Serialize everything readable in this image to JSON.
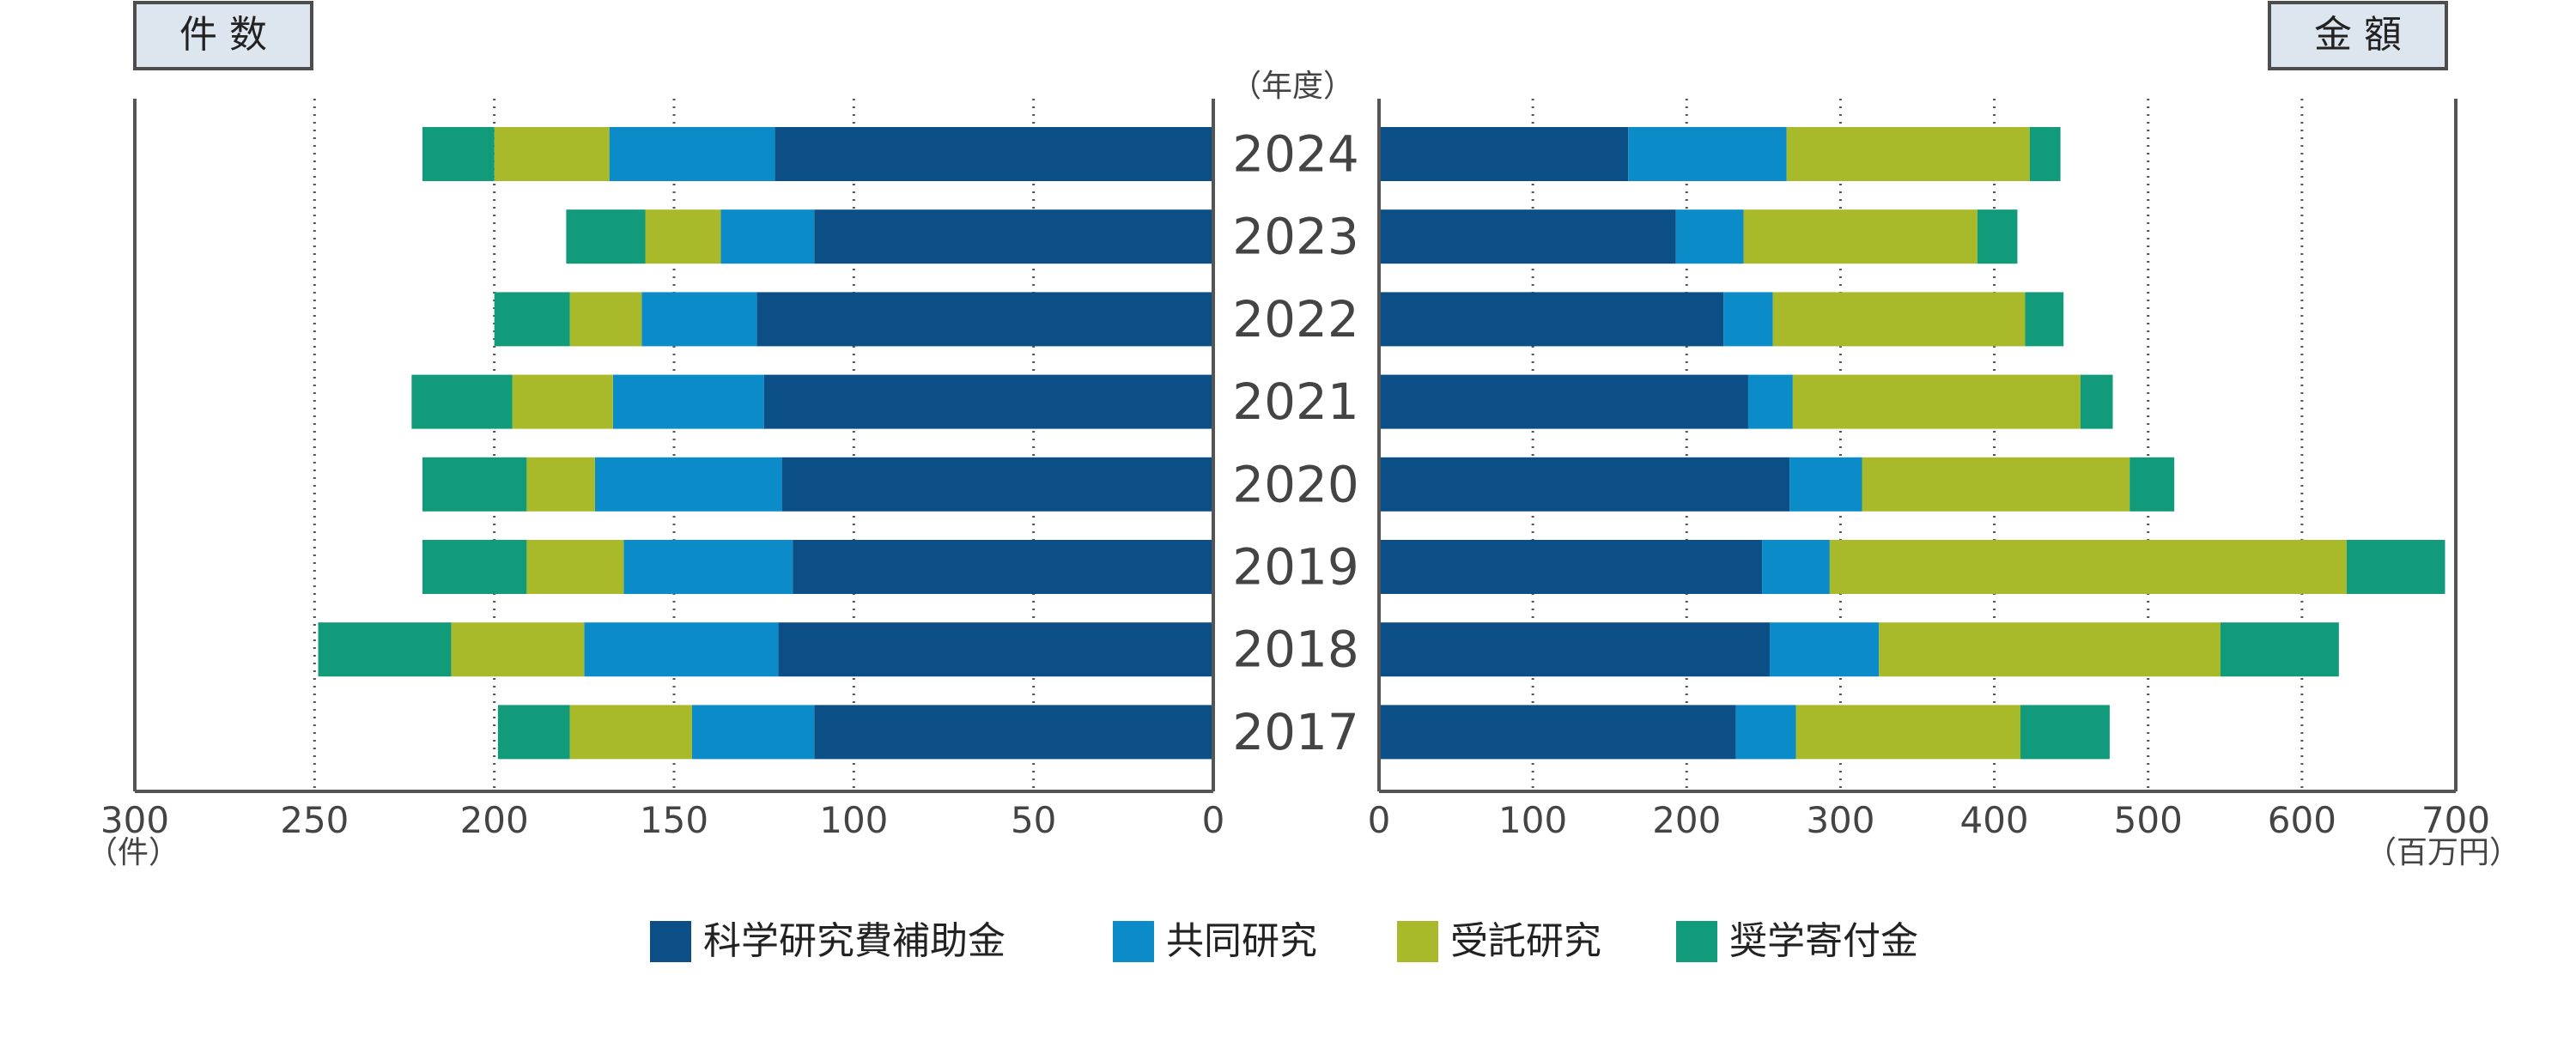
{
  "chart_data": {
    "type": "bar",
    "orientation": "horizontal",
    "stacked": true,
    "layout": "mirrored-butterfly",
    "center_label": "（年度）",
    "categories": [
      "2024",
      "2023",
      "2022",
      "2021",
      "2020",
      "2019",
      "2018",
      "2017"
    ],
    "legend": {
      "position": "bottom",
      "items": [
        "科学研究費補助金",
        "共同研究",
        "受託研究",
        "奨学寄付金"
      ]
    },
    "left_panel": {
      "title": "件 数",
      "axis_unit": "（件）",
      "xlim": [
        0,
        300
      ],
      "reversed": true,
      "ticks": [
        "300",
        "250",
        "200",
        "150",
        "100",
        "50",
        "0"
      ],
      "tick_values": [
        300,
        250,
        200,
        150,
        100,
        50,
        0
      ],
      "series": [
        {
          "name": "科学研究費補助金",
          "color": "#0b4f86",
          "values": [
            122,
            111,
            127,
            125,
            120,
            117,
            121,
            111
          ]
        },
        {
          "name": "共同研究",
          "color": "#0b8cc8",
          "values": [
            46,
            26,
            32,
            42,
            52,
            47,
            54,
            34
          ]
        },
        {
          "name": "受託研究",
          "color": "#a8b92a",
          "values": [
            32,
            21,
            20,
            28,
            19,
            27,
            37,
            34
          ]
        },
        {
          "name": "奨学寄付金",
          "color": "#119b7b",
          "values": [
            20,
            22,
            21,
            28,
            29,
            29,
            37,
            20
          ]
        }
      ]
    },
    "right_panel": {
      "title": "金 額",
      "axis_unit": "（百万円）",
      "xlim": [
        0,
        700
      ],
      "ticks": [
        "0",
        "100",
        "200",
        "300",
        "400",
        "500",
        "600",
        "700"
      ],
      "tick_values": [
        0,
        100,
        200,
        300,
        400,
        500,
        600,
        700
      ],
      "series": [
        {
          "name": "科学研究費補助金",
          "color": "#0b4f86",
          "values": [
            162,
            193,
            224,
            240,
            267,
            249,
            254,
            232
          ]
        },
        {
          "name": "共同研究",
          "color": "#0b8cc8",
          "values": [
            103,
            44,
            32,
            29,
            47,
            44,
            71,
            39
          ]
        },
        {
          "name": "受託研究",
          "color": "#a8b92a",
          "values": [
            158,
            152,
            164,
            187,
            174,
            336,
            222,
            146
          ]
        },
        {
          "name": "奨学寄付金",
          "color": "#119b7b",
          "values": [
            20,
            26,
            25,
            21,
            29,
            64,
            77,
            58
          ]
        }
      ]
    }
  }
}
